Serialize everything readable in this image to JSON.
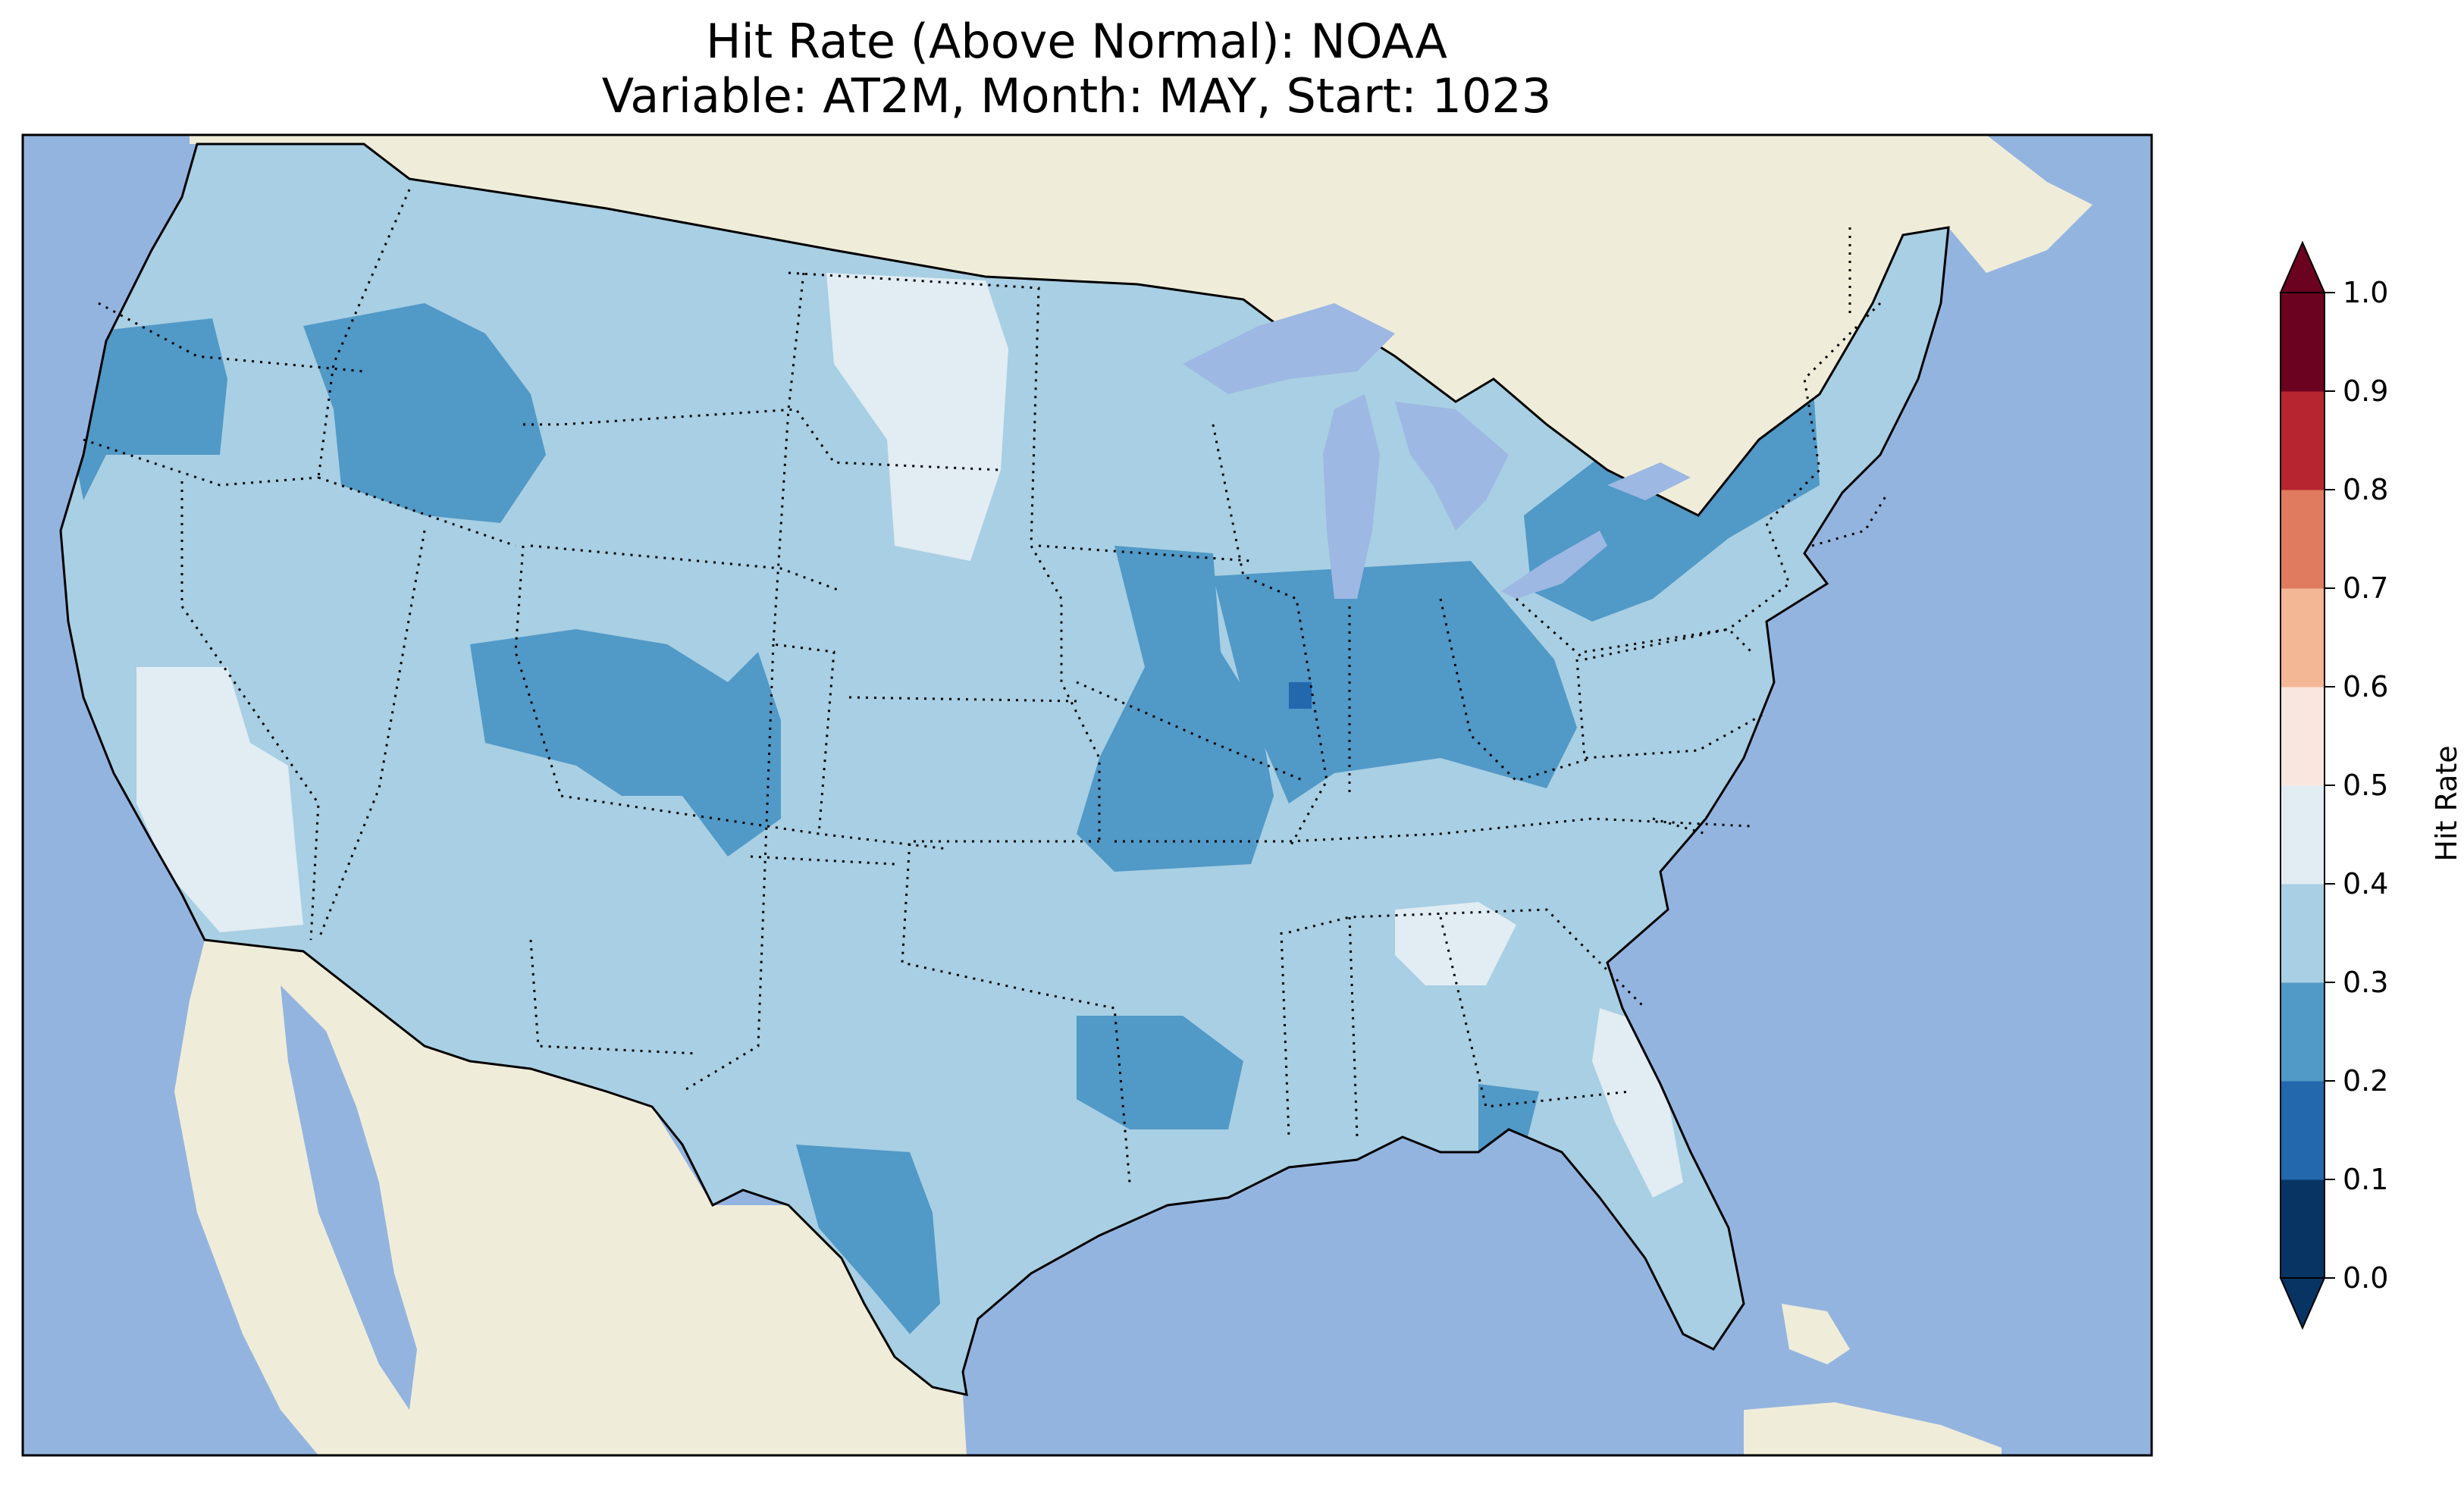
{
  "title": {
    "line1": "Hit Rate (Above Normal): NOAA",
    "line2": "Variable: AT2M, Month: MAY, Start: 1023"
  },
  "map": {
    "region": "Contiguous United States",
    "colors": {
      "ocean": "#94b4e0",
      "land": "#efedd9",
      "lake": "#9db8e3",
      "border": "#000000"
    },
    "dominant_class": "0.3–0.4",
    "regions": [
      {
        "label": "Pacific Northwest coast",
        "class": "0.2–0.3"
      },
      {
        "label": "Eastern Oregon / Idaho",
        "class": "0.2–0.3"
      },
      {
        "label": "Central California / Nevada",
        "class": "0.4–0.5"
      },
      {
        "label": "North Dakota / Minnesota",
        "class": "0.4–0.5"
      },
      {
        "label": "Utah / Colorado",
        "class": "0.2–0.3"
      },
      {
        "label": "Missouri",
        "class": "0.2–0.3"
      },
      {
        "label": "Illinois / Indiana / Ohio / Kentucky",
        "class": "0.2–0.3"
      },
      {
        "label": "New York / Pennsylvania",
        "class": "0.2–0.3"
      },
      {
        "label": "Central Illinois spot",
        "class": "0.1–0.2"
      },
      {
        "label": "Arkansas / Oklahoma",
        "class": "0.2–0.3"
      },
      {
        "label": "South-central Texas",
        "class": "0.2–0.3"
      },
      {
        "label": "Northern Florida panhandle",
        "class": "0.2–0.3"
      },
      {
        "label": "Georgia / Alabama patch",
        "class": "0.4–0.5"
      },
      {
        "label": "Florida east coast",
        "class": "0.4–0.5"
      }
    ]
  },
  "colorbar": {
    "label": "Hit Rate",
    "ticks": [
      "0.0",
      "0.1",
      "0.2",
      "0.3",
      "0.4",
      "0.5",
      "0.6",
      "0.7",
      "0.8",
      "0.9",
      "1.0"
    ],
    "colors": [
      "#053061",
      "#2166ac",
      "#4393c3",
      "#92c5de",
      "#d1e5f0",
      "#f7f7f7",
      "#fddbc7",
      "#f4a582",
      "#d6604d",
      "#b2182b",
      "#67001f"
    ],
    "bins": [
      {
        "range": "0.0–0.1",
        "color": "#073463"
      },
      {
        "range": "0.1–0.2",
        "color": "#2367ad"
      },
      {
        "range": "0.2–0.3",
        "color": "#5199c7"
      },
      {
        "range": "0.3–0.4",
        "color": "#a8cfe3"
      },
      {
        "range": "0.4–0.5",
        "color": "#e1ecf3"
      },
      {
        "range": "0.5–0.6",
        "color": "#f9e7df"
      },
      {
        "range": "0.6–0.7",
        "color": "#f4b796"
      },
      {
        "range": "0.7–0.8",
        "color": "#e17b5f"
      },
      {
        "range": "0.8–0.9",
        "color": "#b72531"
      },
      {
        "range": "0.9–1.0",
        "color": "#6b0220"
      }
    ],
    "under_color": "#073463",
    "over_color": "#6b0220"
  }
}
